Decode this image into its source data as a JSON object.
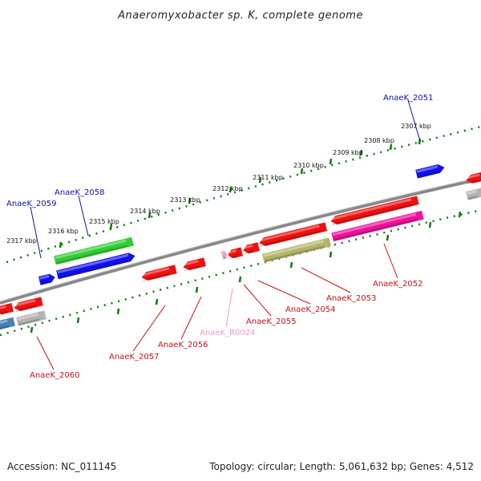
{
  "title": "Anaeromyxobacter sp. K, complete genome",
  "footer": {
    "accession": "Accession: NC_011145",
    "topology": "Topology: circular; Length: 5,061,632 bp; Genes: 4,512"
  },
  "colors": {
    "red": "#ee1111",
    "blue": "#1111ee",
    "green": "#33cc33",
    "olive": "#b5b56a",
    "magenta": "#ee1199",
    "gray": "#b4b4b4",
    "steelblue": "#4a7fb8",
    "pink": "#ee99cc",
    "label_blue": "#1111aa",
    "label_red": "#cc1111",
    "label_pink": "#ee99cc",
    "scale": "#117711"
  },
  "scale_labels": [
    "2307 kbp",
    "2308 kbp",
    "2309 kbp",
    "2310 kbp",
    "2311 kbp",
    "2312 kbp",
    "2313 kbp",
    "2314 kbp",
    "2315 kbp",
    "2316 kbp",
    "2317 kbp"
  ],
  "gene_labels": [
    {
      "text": "AnaeK_2051",
      "color": "label_blue"
    },
    {
      "text": "AnaeK_2058",
      "color": "label_blue"
    },
    {
      "text": "AnaeK_2059",
      "color": "label_blue"
    },
    {
      "text": "AnaeK_2052",
      "color": "label_red"
    },
    {
      "text": "AnaeK_2053",
      "color": "label_red"
    },
    {
      "text": "AnaeK_2054",
      "color": "label_red"
    },
    {
      "text": "AnaeK_2055",
      "color": "label_red"
    },
    {
      "text": "AnaeK_R0024",
      "color": "label_pink"
    },
    {
      "text": "AnaeK_2056",
      "color": "label_red"
    },
    {
      "text": "AnaeK_2057",
      "color": "label_red"
    },
    {
      "text": "AnaeK_2060",
      "color": "label_red"
    }
  ]
}
